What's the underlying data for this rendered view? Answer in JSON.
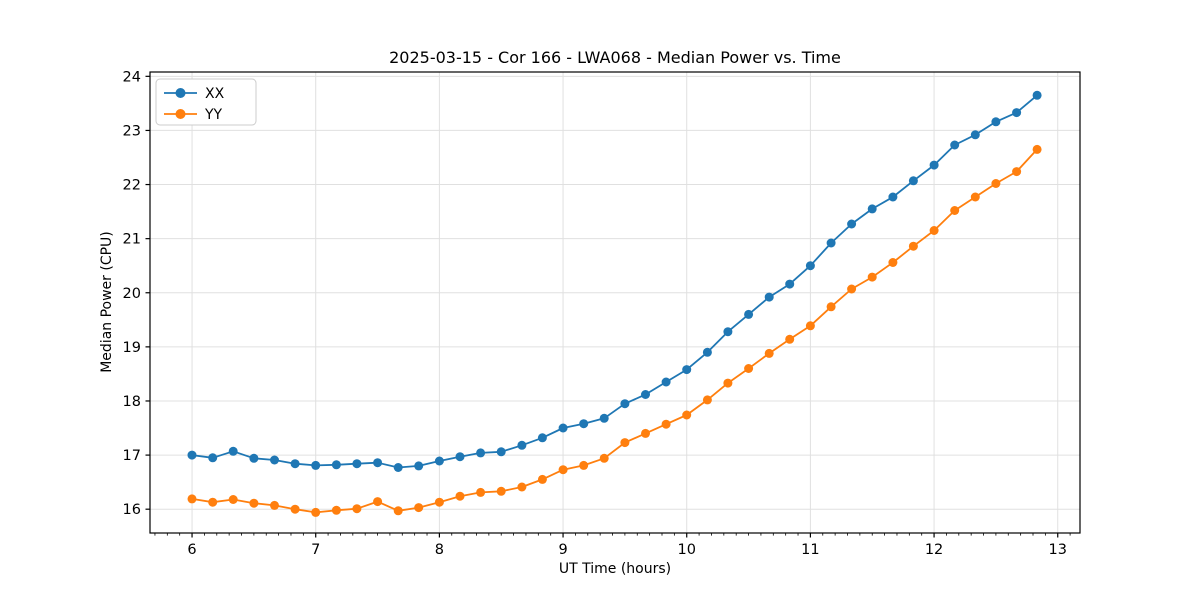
{
  "chart_data": {
    "type": "line",
    "title": "2025-03-15 - Cor 166 - LWA068 - Median Power vs. Time",
    "xlabel": "UT Time (hours)",
    "ylabel": "Median Power (CPU)",
    "xlim": [
      5.66,
      13.18
    ],
    "ylim": [
      15.56,
      24.08
    ],
    "x_ticks": [
      6,
      7,
      8,
      9,
      10,
      11,
      12,
      13
    ],
    "y_ticks": [
      16,
      17,
      18,
      19,
      20,
      21,
      22,
      23,
      24
    ],
    "minor_tick_step_x": 0.1,
    "grid": true,
    "grid_color": "#e0e0e0",
    "legend_position": "upper left",
    "marker": "circle",
    "x": [
      6.0,
      6.167,
      6.333,
      6.5,
      6.667,
      6.833,
      7.0,
      7.167,
      7.333,
      7.5,
      7.667,
      7.833,
      8.0,
      8.167,
      8.333,
      8.5,
      8.667,
      8.833,
      9.0,
      9.167,
      9.333,
      9.5,
      9.667,
      9.833,
      10.0,
      10.167,
      10.333,
      10.5,
      10.667,
      10.833,
      11.0,
      11.167,
      11.333,
      11.5,
      11.667,
      11.833,
      12.0,
      12.167,
      12.333,
      12.5,
      12.667,
      12.833
    ],
    "series": [
      {
        "name": "XX",
        "color": "#1f77b4",
        "values": [
          17.0,
          16.95,
          17.07,
          16.94,
          16.91,
          16.84,
          16.81,
          16.82,
          16.84,
          16.86,
          16.77,
          16.8,
          16.89,
          16.97,
          17.04,
          17.06,
          17.18,
          17.32,
          17.5,
          17.58,
          17.68,
          17.95,
          18.12,
          18.35,
          18.58,
          18.9,
          19.28,
          19.6,
          19.92,
          20.16,
          20.5,
          20.92,
          21.27,
          21.55,
          21.77,
          22.07,
          22.36,
          22.73,
          22.92,
          23.16,
          23.33,
          23.65
        ]
      },
      {
        "name": "YY",
        "color": "#ff7f0e",
        "values": [
          16.19,
          16.13,
          16.18,
          16.11,
          16.07,
          16.0,
          15.94,
          15.98,
          16.01,
          16.14,
          15.97,
          16.03,
          16.13,
          16.24,
          16.31,
          16.33,
          16.41,
          16.55,
          16.73,
          16.81,
          16.94,
          17.23,
          17.4,
          17.57,
          17.74,
          18.02,
          18.33,
          18.6,
          18.88,
          19.14,
          19.39,
          19.74,
          20.07,
          20.29,
          20.56,
          20.86,
          21.15,
          21.52,
          21.77,
          22.02,
          22.24,
          22.65
        ]
      }
    ]
  }
}
